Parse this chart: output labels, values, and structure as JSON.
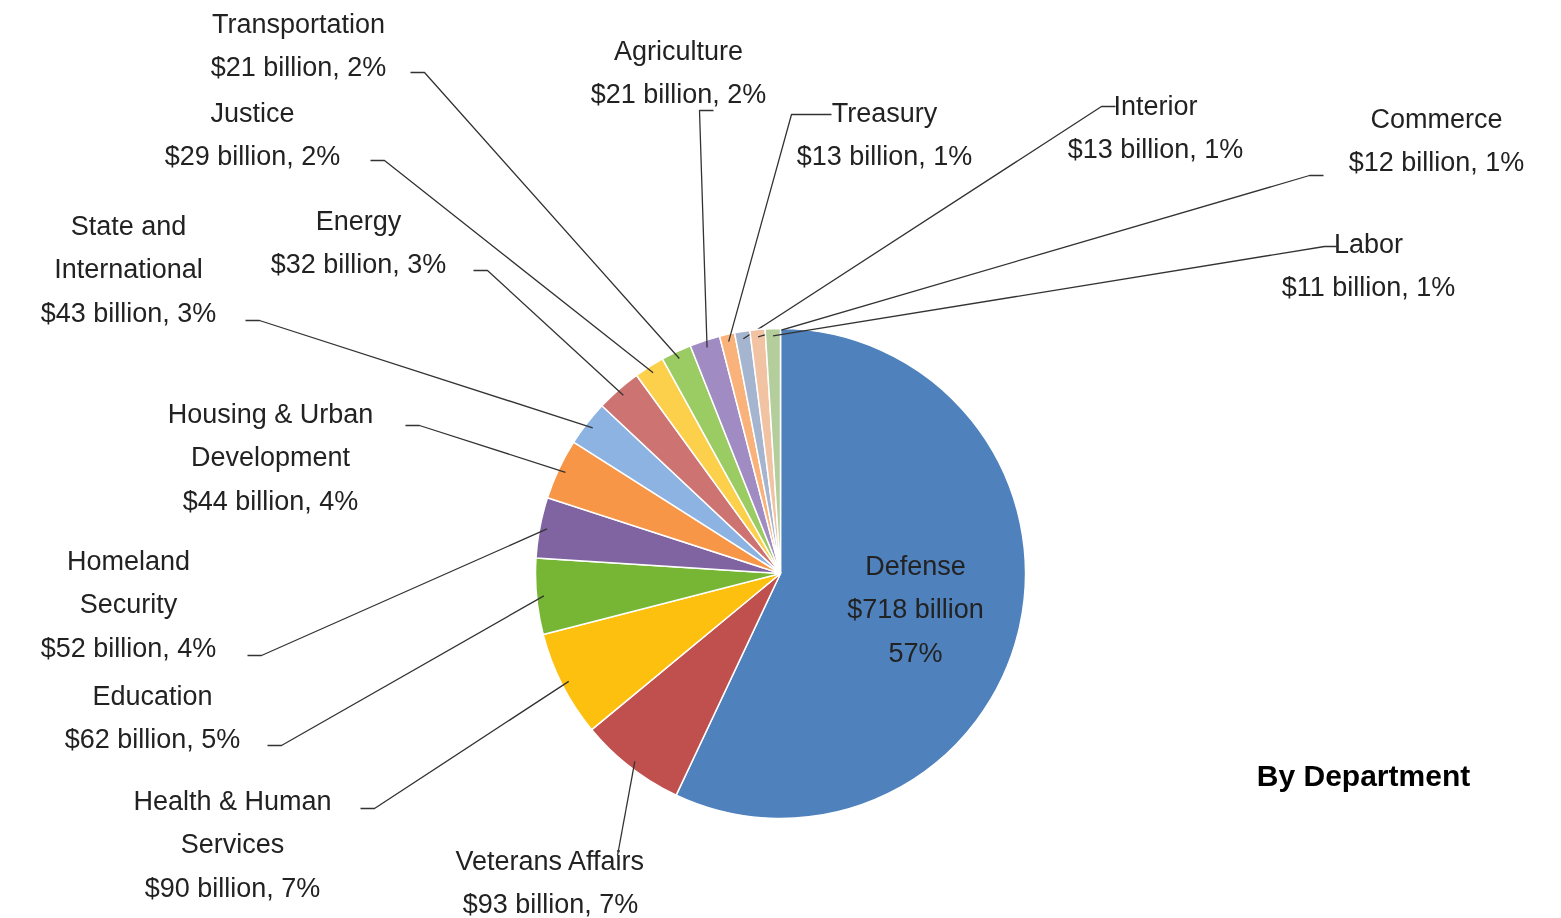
{
  "chart_data": {
    "type": "pie",
    "title": "By Department",
    "categories": [
      "Defense",
      "Veterans Affairs",
      "Health & Human Services",
      "Education",
      "Homeland Security",
      "Housing & Urban Development",
      "State and International",
      "Energy",
      "Justice",
      "Transportation",
      "Agriculture",
      "Treasury",
      "Interior",
      "Commerce",
      "Labor"
    ],
    "values": [
      57,
      7,
      7,
      5,
      4,
      4,
      3,
      3,
      2,
      2,
      2,
      1,
      1,
      1,
      1
    ],
    "colors": [
      "#4f81bd",
      "#c0504d",
      "#fdc00f",
      "#77b634",
      "#8064a2",
      "#f79646",
      "#8db3e2",
      "#cd7371",
      "#fcd04b",
      "#9bcc63",
      "#a08bc2",
      "#f9b27a",
      "#a5b5cf",
      "#f2c3a3",
      "#b3cd9b"
    ],
    "value_labels": [
      "$718 billion\n57%",
      "$93 billion, 7%",
      "$90 billion, 7%",
      "$62 billion, 5%",
      "$52 billion, 4%",
      "$44 billion, 4%",
      "$43 billion, 3%",
      "$32 billion, 3%",
      "$29 billion, 2%",
      "$21 billion, 2%",
      "$21 billion, 2%",
      "$13 billion, 1%",
      "$13 billion, 1%",
      "$12 billion, 1%",
      "$11 billion, 1%"
    ]
  }
}
